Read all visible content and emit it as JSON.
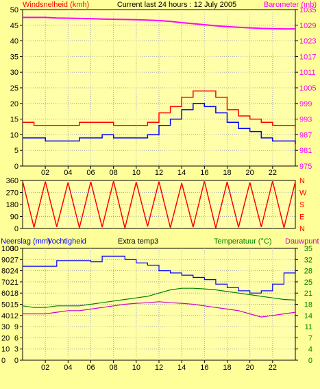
{
  "header": {
    "left_label": "Windsnelheid (kmh)",
    "center_label": "Current last 24 hours : 12 July 2005",
    "right_label": "Barometer (mb)"
  },
  "colors": {
    "background": "#ffff99",
    "plot_bg": "#ffffaa",
    "wind_gust": "#ff0000",
    "wind_avg": "#0000ff",
    "barometer": "#ff00ff",
    "direction": "#ff0000",
    "humidity": "#0000ff",
    "temperature": "#008000",
    "dewpoint": "#cc00cc",
    "green_text": "#008000"
  },
  "x_ticks": [
    "02",
    "04",
    "06",
    "08",
    "10",
    "12",
    "14",
    "16",
    "18",
    "20",
    "22"
  ],
  "chart_data": [
    {
      "type": "line",
      "name": "wind-barometer",
      "x": [
        0,
        1,
        2,
        3,
        4,
        5,
        6,
        7,
        8,
        9,
        10,
        11,
        12,
        13,
        14,
        15,
        16,
        17,
        18,
        19,
        20,
        21,
        22,
        23,
        24
      ],
      "series": [
        {
          "name": "Windsnelheid gust",
          "axis": "left",
          "values": [
            14,
            13,
            13,
            13,
            13,
            14,
            14,
            14,
            13,
            13,
            13,
            14,
            17,
            19,
            22,
            24,
            24,
            22,
            18,
            16,
            15,
            14,
            13,
            13,
            12
          ]
        },
        {
          "name": "Windsnelheid",
          "axis": "left",
          "values": [
            9,
            9,
            8,
            8,
            8,
            9,
            9,
            10,
            9,
            9,
            9,
            10,
            13,
            15,
            18,
            20,
            19,
            17,
            14,
            12,
            11,
            9,
            8,
            8,
            7
          ]
        },
        {
          "name": "Barometer",
          "axis": "right",
          "values": [
            1032,
            1032,
            1032,
            1031.8,
            1031.7,
            1031.6,
            1031.5,
            1031.4,
            1031.3,
            1031.2,
            1031.1,
            1031,
            1030.8,
            1030.5,
            1030,
            1029.6,
            1029.2,
            1028.8,
            1028.5,
            1028.2,
            1028,
            1027.8,
            1027.7,
            1027.6,
            1027.6
          ]
        }
      ],
      "y_left": {
        "ticks": [
          "0",
          "5",
          "10",
          "15",
          "20",
          "25",
          "30",
          "35",
          "40",
          "45",
          "50"
        ],
        "range": [
          0,
          50
        ]
      },
      "y_right": {
        "ticks": [
          "975",
          "981",
          "987",
          "993",
          "999",
          "1005",
          "1011",
          "1017",
          "1023",
          "1029",
          "1035"
        ],
        "range": [
          975,
          1035
        ]
      }
    },
    {
      "type": "line",
      "name": "wind-direction",
      "x_range": [
        0,
        24
      ],
      "direction_values": [
        355,
        8,
        352,
        12,
        345,
        5,
        350,
        10,
        355,
        2,
        348,
        15,
        352,
        6,
        340,
        10,
        355,
        3,
        350,
        8,
        345,
        12,
        355,
        5,
        350
      ],
      "y_left": {
        "ticks": [
          "0",
          "90",
          "180",
          "270",
          "360"
        ],
        "range": [
          0,
          360
        ]
      },
      "y_right": {
        "ticks": [
          "N",
          "E",
          "S",
          "W",
          "N"
        ]
      }
    },
    {
      "type": "line",
      "name": "rain-humidity-temperature",
      "header": {
        "rain_label": "Neerslag (mm)",
        "humidity_label": "Vochtigheid",
        "extra_label": "Extra temp3",
        "temp_label": "Temperatuur (°C)",
        "dew_label": "Dauwpunt"
      },
      "x": [
        0,
        1,
        2,
        3,
        4,
        5,
        6,
        7,
        8,
        9,
        10,
        11,
        12,
        13,
        14,
        15,
        16,
        17,
        18,
        19,
        20,
        21,
        22,
        23,
        24
      ],
      "series": [
        {
          "name": "Vochtigheid",
          "axis": "humidity",
          "values": [
            84,
            84,
            84,
            89,
            89,
            89,
            88,
            93,
            93,
            90,
            87,
            85,
            80,
            78,
            76,
            74,
            72,
            68,
            65,
            62,
            60,
            62,
            68,
            78,
            84
          ]
        },
        {
          "name": "Temperatuur",
          "axis": "temp",
          "values": [
            17,
            16.5,
            16.5,
            17,
            17,
            17,
            17.5,
            18,
            18.5,
            19,
            19.5,
            20,
            21,
            22,
            22.5,
            22.5,
            22.3,
            22,
            21.5,
            21,
            20.5,
            20,
            19.5,
            19,
            18.8
          ]
        },
        {
          "name": "Dauwpunt",
          "axis": "temp",
          "values": [
            14.5,
            14.5,
            14.5,
            15,
            15.5,
            15.5,
            16,
            16.5,
            17,
            17.5,
            17.8,
            18,
            18.3,
            18,
            17.8,
            17.5,
            17,
            16.5,
            16,
            15.5,
            14.5,
            13.5,
            14,
            14.5,
            15
          ]
        }
      ],
      "y_rain": {
        "ticks": [
          "0",
          "10",
          "20",
          "30",
          "40",
          "50",
          "60",
          "70",
          "80",
          "90",
          "100"
        ]
      },
      "y_humidity": {
        "ticks": [
          "0",
          "3",
          "6",
          "9",
          "12",
          "15",
          "18",
          "21",
          "24",
          "27",
          "30"
        ]
      },
      "y_temp": {
        "ticks": [
          "0",
          "4",
          "7",
          "11",
          "14",
          "18",
          "21",
          "25",
          "28",
          "32",
          "35"
        ],
        "range": [
          0,
          35
        ]
      }
    }
  ]
}
